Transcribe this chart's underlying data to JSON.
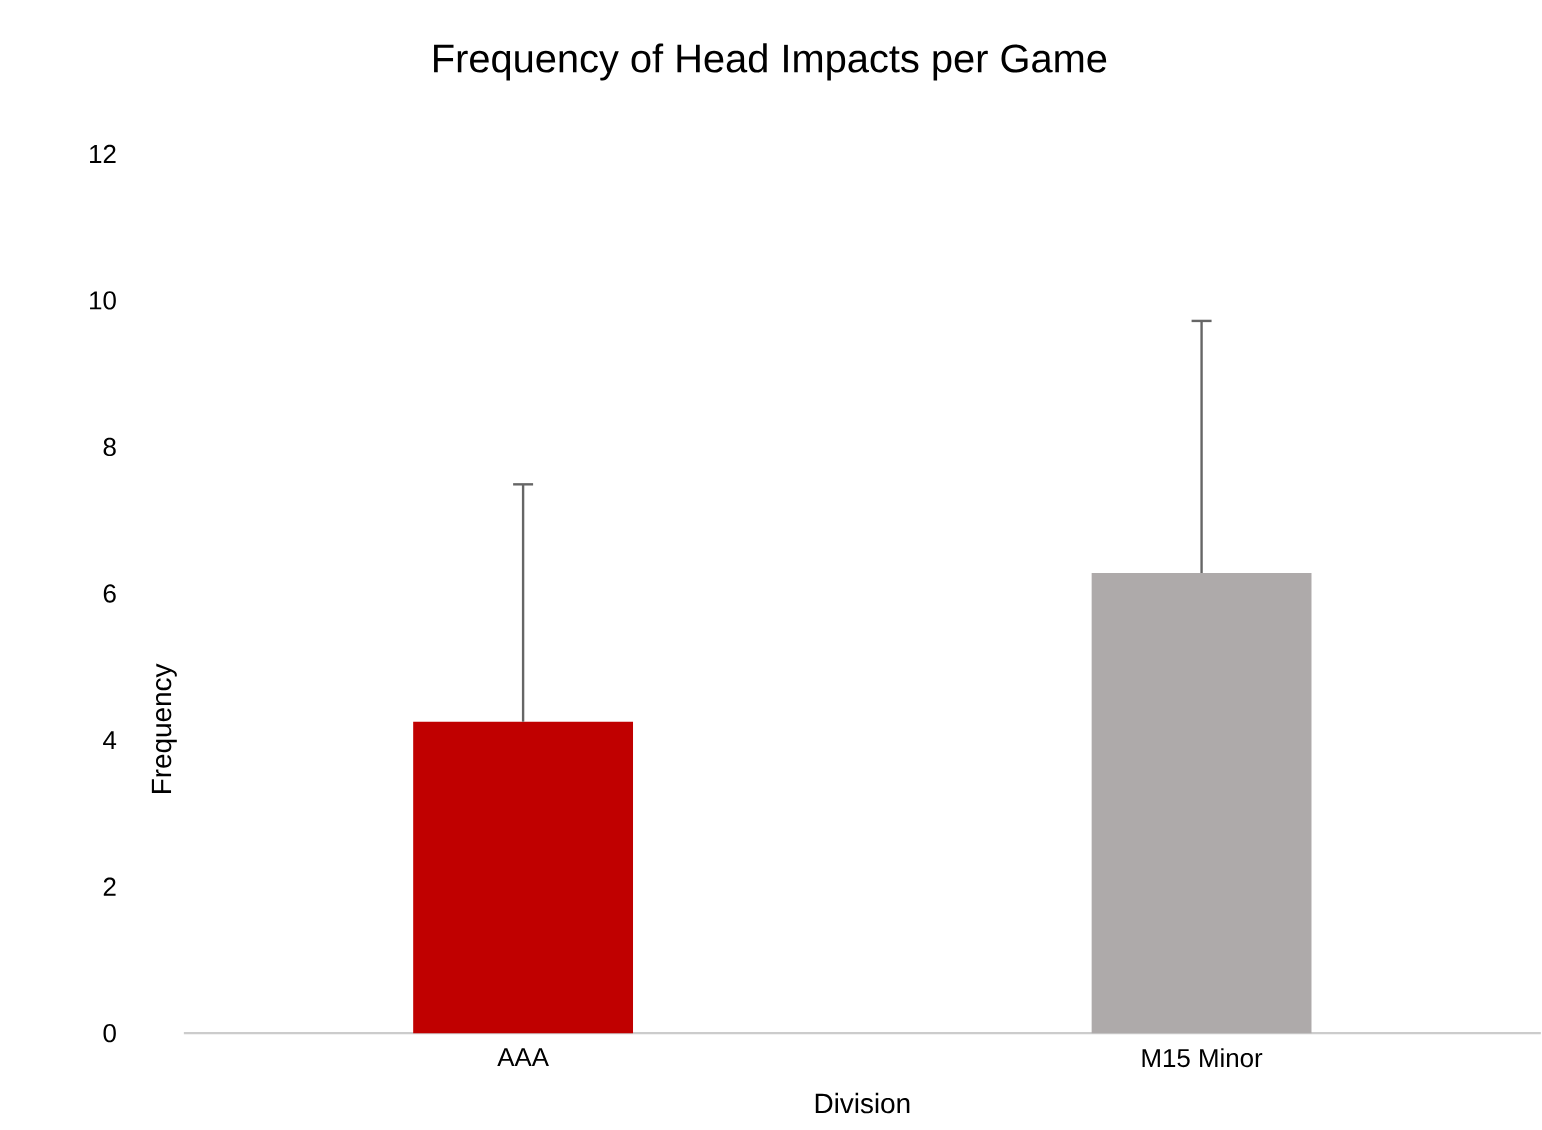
{
  "chart_data": {
    "type": "bar",
    "title": "Frequency of Head Impacts per Game",
    "xlabel": "Division",
    "ylabel": "Frequency",
    "categories": [
      "AAA",
      "M15 Minor"
    ],
    "values": [
      4.25,
      6.28
    ],
    "colors": [
      "#c00000",
      "#aeaaaa"
    ],
    "errors": [
      [
        4.25,
        7.49
      ],
      [
        6.28,
        9.72
      ]
    ],
    "ylim": [
      0,
      12
    ],
    "yticks": [
      0,
      2,
      4,
      6,
      8,
      10,
      12
    ]
  }
}
